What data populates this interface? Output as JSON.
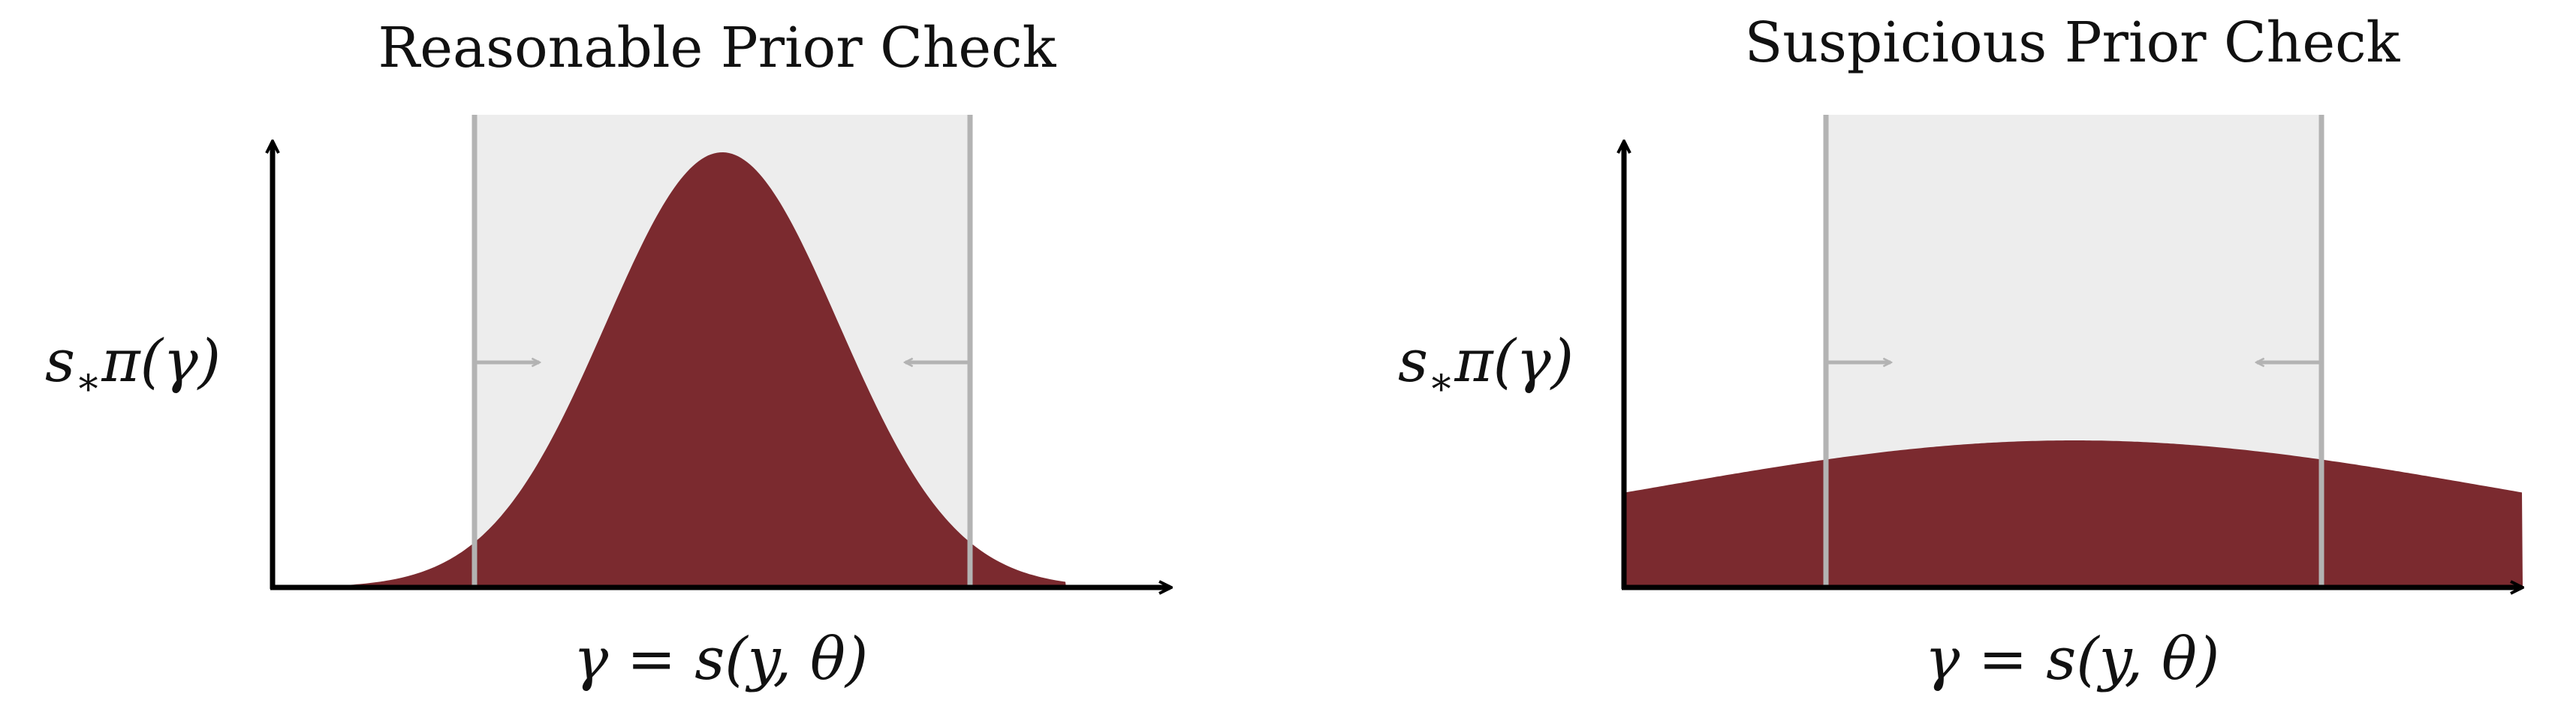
{
  "panels": [
    {
      "title": "Reasonable Prior Check",
      "ylabel": {
        "s": "s",
        "sub": "∗",
        "rest": "π(γ)"
      },
      "xlabel": {
        "pre": "γ = s(y, θ)"
      },
      "colors": {
        "density": "#7b2a2f",
        "band": "#ededed",
        "bounds": "#b3b3b3",
        "axis": "#000000"
      }
    },
    {
      "title": "Suspicious Prior Check",
      "ylabel": {
        "s": "s",
        "sub": "∗",
        "rest": "π(γ)"
      },
      "xlabel": {
        "pre": "γ = s(y, θ)"
      },
      "colors": {
        "density": "#7b2a2f",
        "band": "#ededed",
        "bounds": "#b3b3b3",
        "axis": "#000000"
      }
    }
  ]
}
